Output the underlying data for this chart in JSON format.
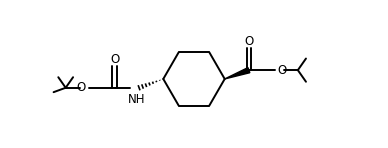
{
  "bg_color": "#ffffff",
  "line_color": "#000000",
  "lw": 1.4,
  "figsize": [
    3.88,
    1.48
  ],
  "dpi": 100,
  "xlim": [
    0,
    7.76
  ],
  "ylim": [
    0,
    2.96
  ]
}
